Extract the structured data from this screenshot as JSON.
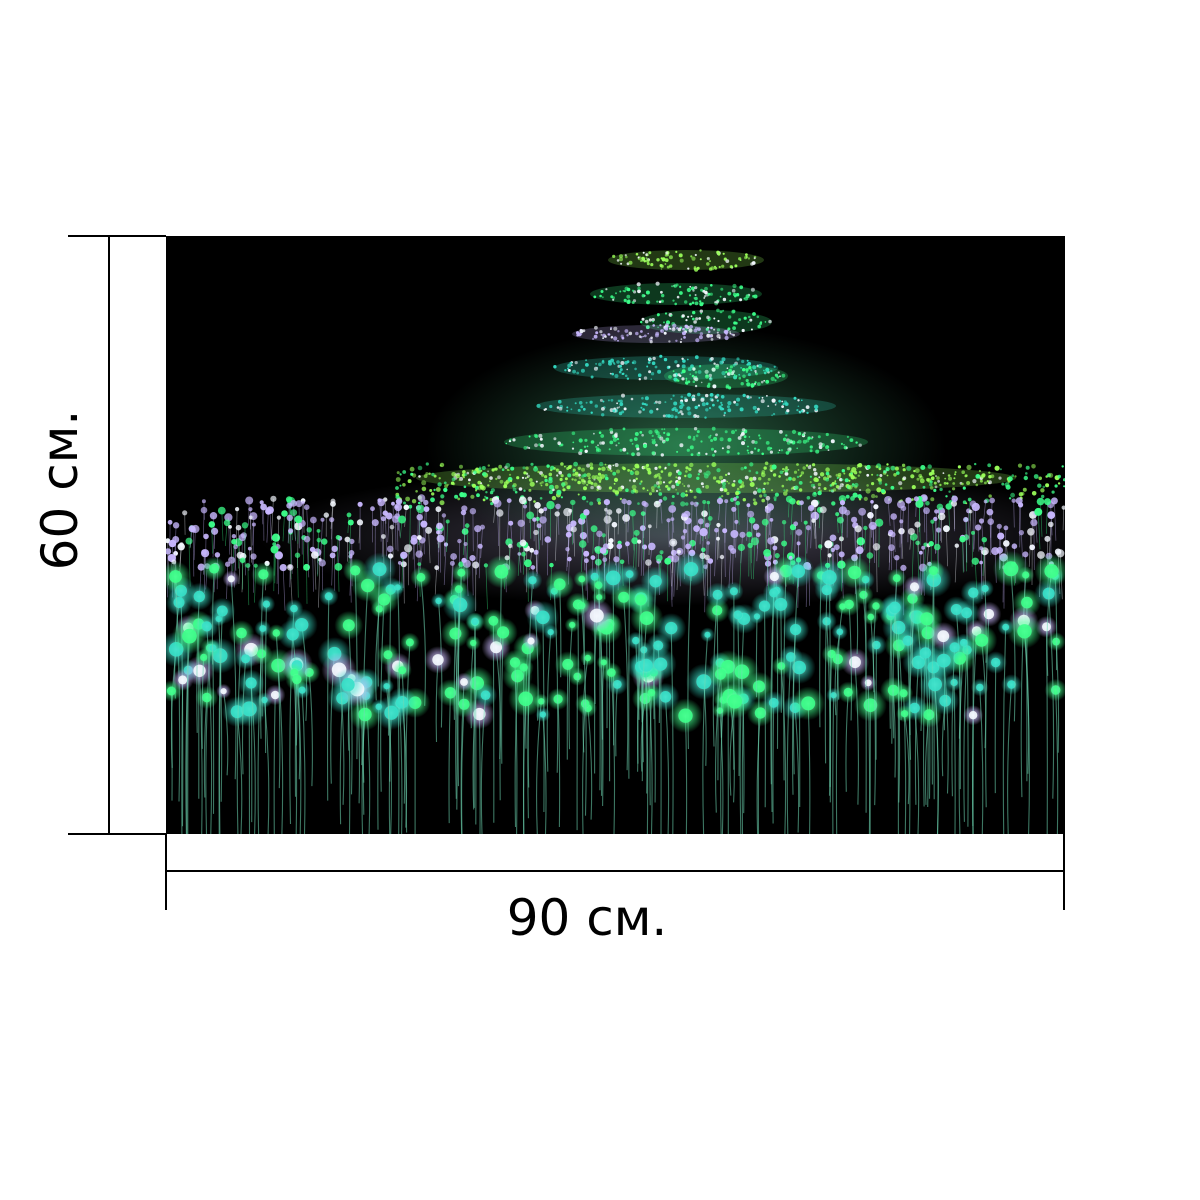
{
  "dimensions": {
    "height_label": "60 см.",
    "width_label": "90 см."
  },
  "photo": {
    "subject": "field-of-light-installation",
    "colors": {
      "background": "#000000",
      "green": "#3cff8a",
      "teal": "#35e0c8",
      "lavender": "#c9b8ff",
      "white": "#f4f8ff",
      "lime": "#9bff5a"
    }
  }
}
